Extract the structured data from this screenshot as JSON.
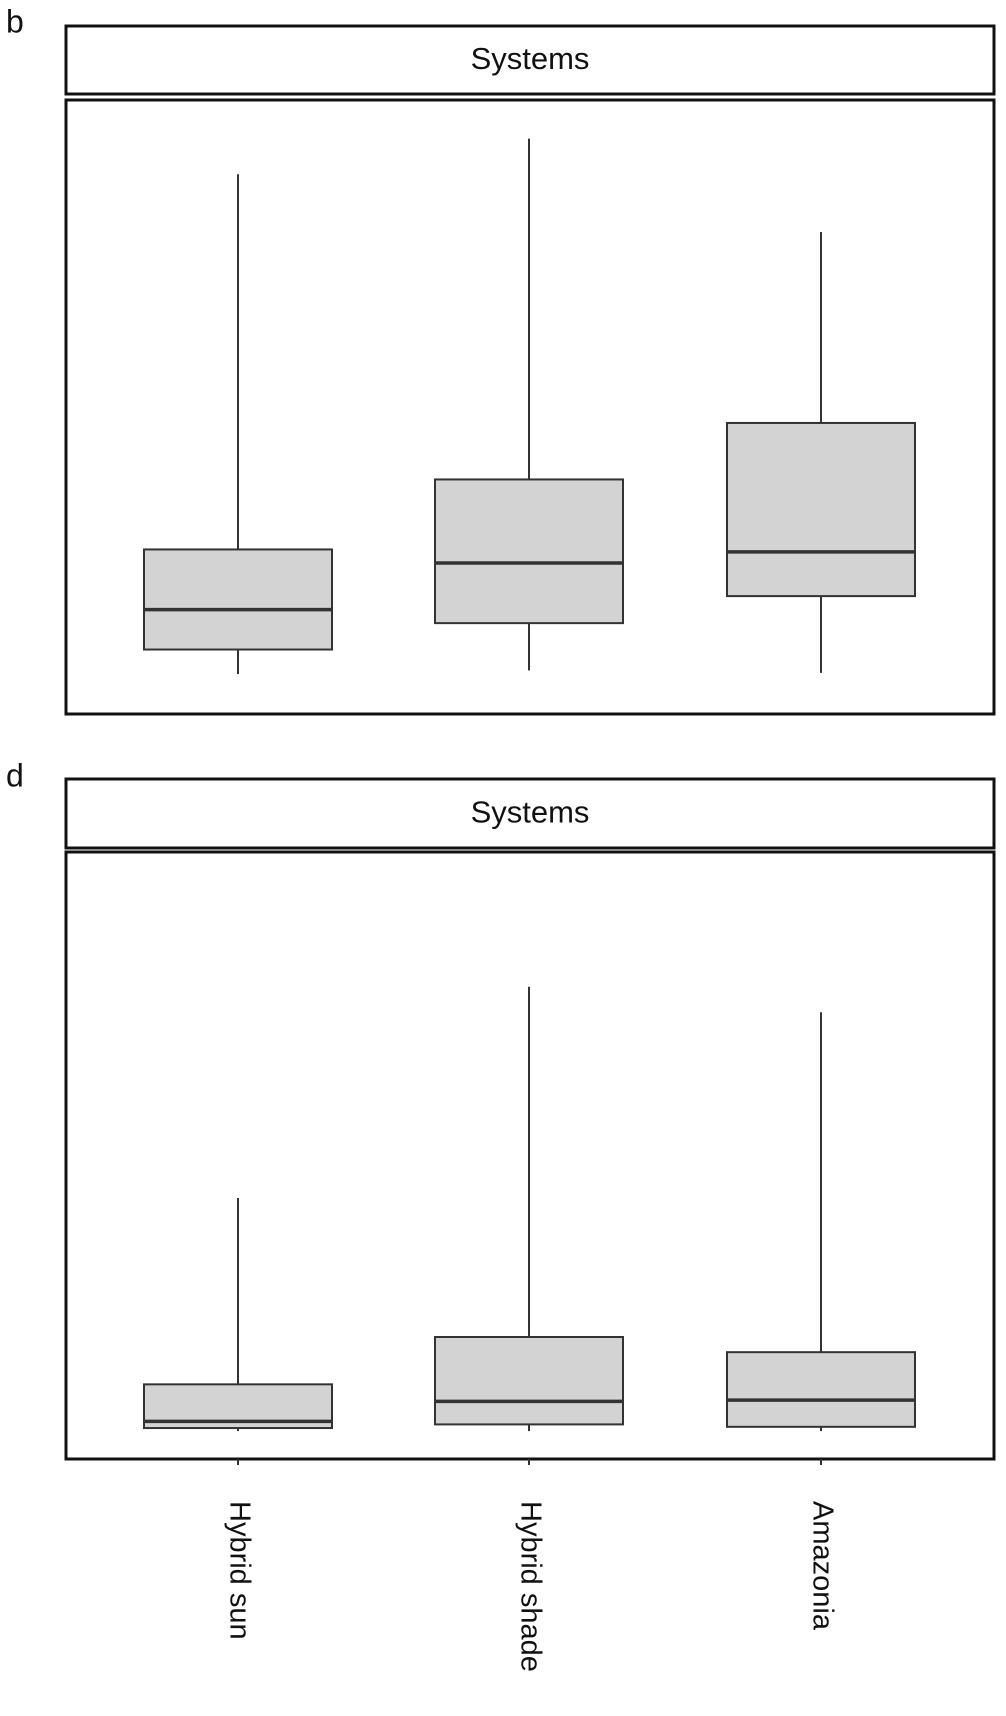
{
  "chart_data": [
    {
      "type": "box",
      "label": "b",
      "title": "Systems",
      "ylim": [
        0,
        100
      ],
      "boxes": [
        {
          "whislo": 6.5,
          "q1": 10.5,
          "med": 17.0,
          "q3": 26.8,
          "whishi": 87.9
        },
        {
          "whislo": 7.1,
          "q1": 14.8,
          "med": 24.6,
          "q3": 38.2,
          "whishi": 93.7
        },
        {
          "whislo": 6.7,
          "q1": 19.2,
          "med": 26.4,
          "q3": 47.4,
          "whishi": 78.5
        }
      ]
    },
    {
      "type": "box",
      "label": "d",
      "title": "Systems",
      "ylim": [
        0,
        100
      ],
      "categories": [
        "Hybrid sun",
        "Hybrid shade",
        "Amazonia"
      ],
      "boxes": [
        {
          "whislo": 4.6,
          "q1": 5.1,
          "med": 6.2,
          "q3": 12.3,
          "whishi": 43.0
        },
        {
          "whislo": 4.6,
          "q1": 5.7,
          "med": 9.5,
          "q3": 20.1,
          "whishi": 77.8
        },
        {
          "whislo": 4.6,
          "q1": 5.3,
          "med": 9.7,
          "q3": 17.6,
          "whishi": 73.6
        }
      ]
    }
  ]
}
